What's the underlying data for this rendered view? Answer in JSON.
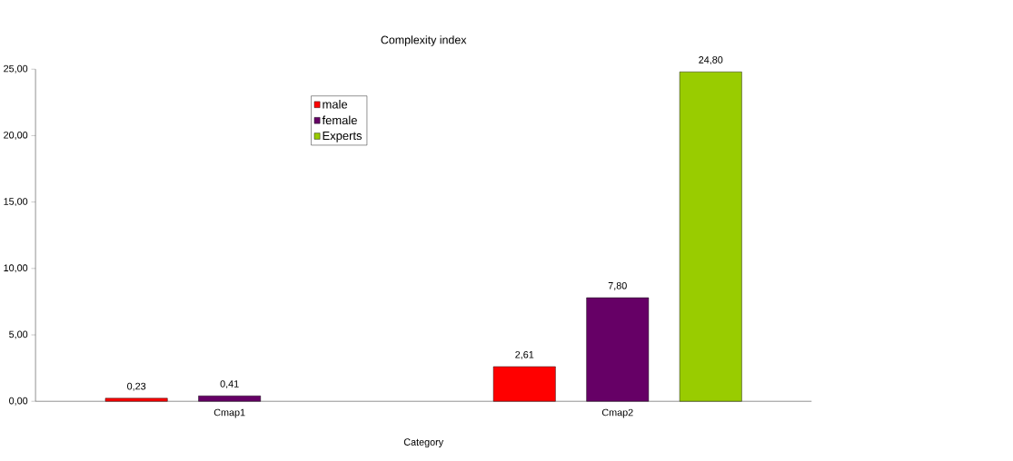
{
  "chart_data": {
    "type": "bar",
    "title": "Complexity index",
    "xlabel": "Category",
    "categories": [
      "Cmap1",
      "Cmap2"
    ],
    "series": [
      {
        "name": "male",
        "color": "#ff0000",
        "values": [
          0.23,
          2.61
        ],
        "value_labels": [
          "0,23",
          "2,61"
        ]
      },
      {
        "name": "female",
        "color": "#660066",
        "values": [
          0.41,
          7.8
        ],
        "value_labels": [
          "0,41",
          "7,80"
        ]
      },
      {
        "name": "Experts",
        "color": "#99cc00",
        "values": [
          null,
          24.8
        ],
        "value_labels": [
          null,
          "24,80"
        ]
      }
    ],
    "ylim": [
      0,
      25
    ],
    "yticks": [
      {
        "value": 0,
        "label": "0,00"
      },
      {
        "value": 5,
        "label": "5,00"
      },
      {
        "value": 10,
        "label": "10,00"
      },
      {
        "value": 15,
        "label": "15,00"
      },
      {
        "value": 20,
        "label": "20,00"
      },
      {
        "value": 25,
        "label": "25,00"
      }
    ],
    "grid": false,
    "legend": "top"
  }
}
